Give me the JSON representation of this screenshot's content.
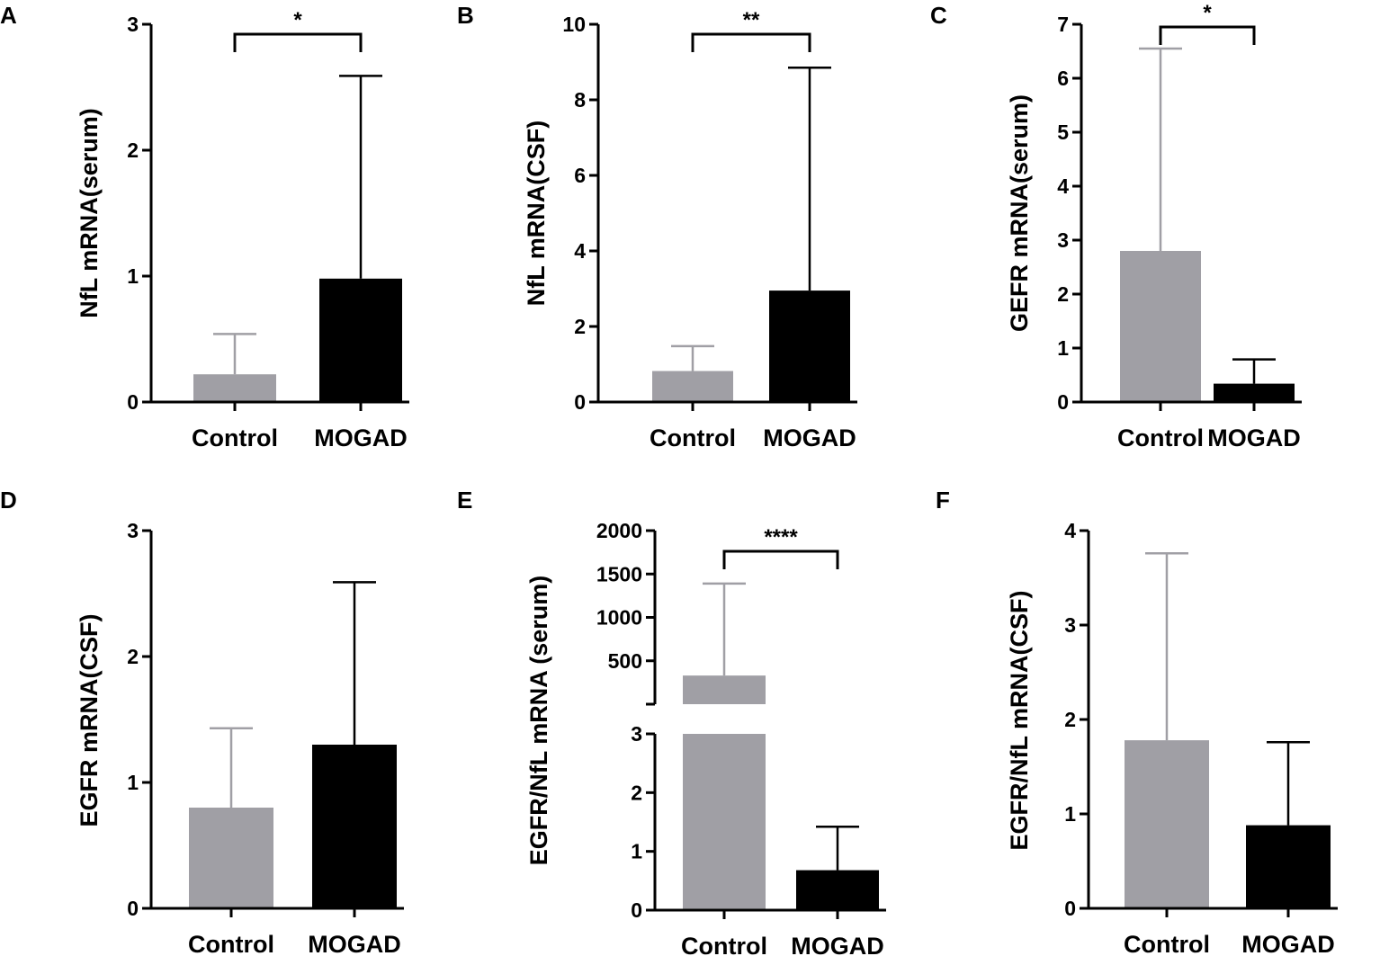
{
  "figure": {
    "description_colors": {
      "control": "#a09fa5",
      "mogad": "#000000",
      "axis": "#000000"
    }
  },
  "chart_data": [
    {
      "panel": "A",
      "type": "bar",
      "categories": [
        "Control",
        "MOGAD"
      ],
      "values": [
        0.22,
        0.98
      ],
      "errors": [
        0.54,
        2.59
      ],
      "colors": [
        "#a09fa5",
        "#000000"
      ],
      "ylabel": "NfL mRNA(serum)",
      "ylim": [
        0,
        3
      ],
      "yticks": [
        0,
        1,
        2,
        3
      ],
      "significance": "*"
    },
    {
      "panel": "B",
      "type": "bar",
      "categories": [
        "Control",
        "MOGAD"
      ],
      "values": [
        0.82,
        2.95
      ],
      "errors": [
        1.48,
        8.85
      ],
      "colors": [
        "#a09fa5",
        "#000000"
      ],
      "ylabel": "NfL mRNA(CSF)",
      "ylim": [
        0,
        10
      ],
      "yticks": [
        0,
        2,
        4,
        6,
        8,
        10
      ],
      "significance": "**"
    },
    {
      "panel": "C",
      "type": "bar",
      "categories": [
        "Control",
        "MOGAD"
      ],
      "values": [
        2.8,
        0.34
      ],
      "errors": [
        6.55,
        0.79
      ],
      "colors": [
        "#a09fa5",
        "#000000"
      ],
      "ylabel": "GEFR mRNA(serum)",
      "ylim": [
        0,
        7
      ],
      "yticks": [
        0,
        1,
        2,
        3,
        4,
        5,
        6,
        7
      ],
      "significance": "*"
    },
    {
      "panel": "D",
      "type": "bar",
      "categories": [
        "Control",
        "MOGAD"
      ],
      "values": [
        0.8,
        1.3
      ],
      "errors": [
        1.43,
        2.59
      ],
      "colors": [
        "#a09fa5",
        "#000000"
      ],
      "ylabel": "EGFR mRNA(CSF)",
      "ylim": [
        0,
        3
      ],
      "yticks": [
        0,
        1,
        2,
        3
      ],
      "significance": ""
    },
    {
      "panel": "E",
      "type": "bar",
      "categories": [
        "Control",
        "MOGAD"
      ],
      "values": [
        330,
        0.68
      ],
      "errors": [
        1390,
        1.42
      ],
      "colors": [
        "#a09fa5",
        "#000000"
      ],
      "ylabel": "EGFR/NfL  mRNA (serum)",
      "broken_axis": {
        "lower": [
          0,
          3
        ],
        "upper": [
          0,
          2000
        ]
      },
      "yticks_lower": [
        0,
        1,
        2,
        3
      ],
      "yticks_upper": [
        500,
        1000,
        1500,
        2000
      ],
      "significance": "****"
    },
    {
      "panel": "F",
      "type": "bar",
      "categories": [
        "Control",
        "MOGAD"
      ],
      "values": [
        1.78,
        0.88
      ],
      "errors": [
        3.76,
        1.76
      ],
      "colors": [
        "#a09fa5",
        "#000000"
      ],
      "ylabel": "EGFR/NfL mRNA(CSF)",
      "ylim": [
        0,
        4
      ],
      "yticks": [
        0,
        1,
        2,
        3,
        4
      ],
      "significance": ""
    }
  ]
}
